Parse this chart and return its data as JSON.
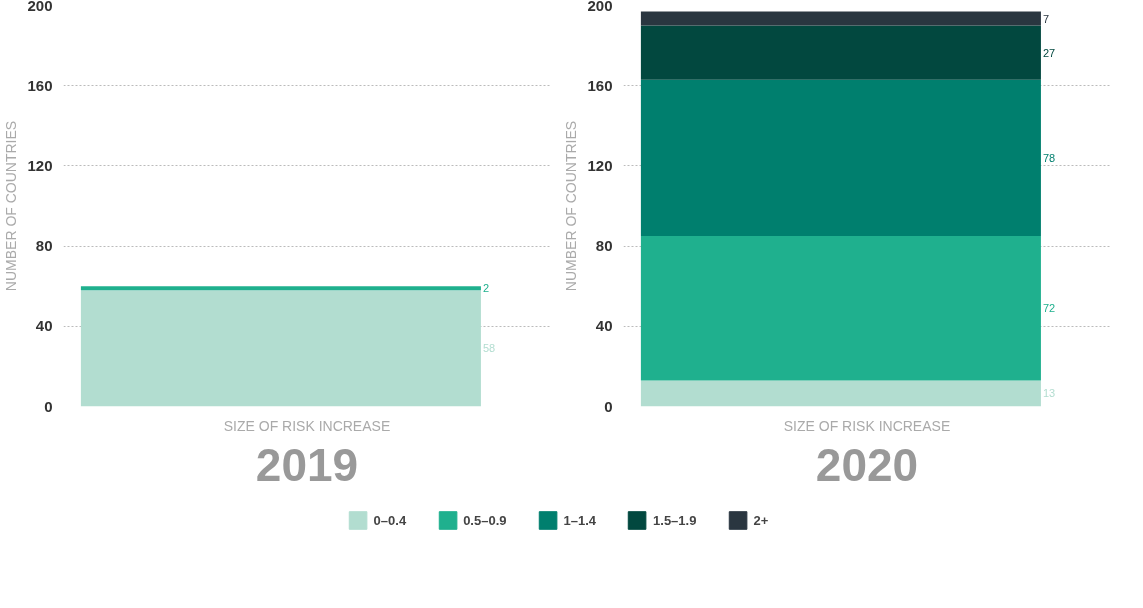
{
  "chart_data": [
    {
      "type": "bar",
      "title": "2019",
      "xlabel": "SIZE OF RISK INCREASE",
      "ylabel": "NUMBER OF COUNTRIES",
      "categories": [
        null
      ],
      "stacked": true,
      "ylim": [
        0,
        200
      ],
      "yticks": [
        0,
        40,
        80,
        120,
        160,
        200
      ],
      "grid": "y",
      "tick_labels": "y",
      "data_labels": true,
      "legend": "bottom",
      "series": [
        {
          "name": "0–0.4",
          "color": "#b2ddd0",
          "values": [
            58
          ]
        },
        {
          "name": "0.5–0.9",
          "color": "#1fb08e",
          "values": [
            2
          ]
        }
      ]
    },
    {
      "type": "bar",
      "title": "2020",
      "xlabel": "SIZE OF RISK INCREASE",
      "ylabel": "NUMBER OF COUNTRIES",
      "categories": [
        null
      ],
      "stacked": true,
      "ylim": [
        0,
        200
      ],
      "yticks": [
        0,
        40,
        80,
        120,
        160,
        200
      ],
      "grid": "y",
      "tick_labels": "y",
      "data_labels": true,
      "legend": "bottom",
      "series": [
        {
          "name": "0–0.4",
          "color": "#b2ddd0",
          "values": [
            13
          ]
        },
        {
          "name": "0.5–0.9",
          "color": "#1fb08e",
          "values": [
            72
          ]
        },
        {
          "name": "1–1.4",
          "color": "#007f6e",
          "values": [
            78
          ]
        },
        {
          "name": "1.5–1.9",
          "color": "#02483f",
          "values": [
            27
          ]
        },
        {
          "name": "2+",
          "color": "#2a3640",
          "values": [
            7
          ]
        }
      ]
    }
  ]
}
